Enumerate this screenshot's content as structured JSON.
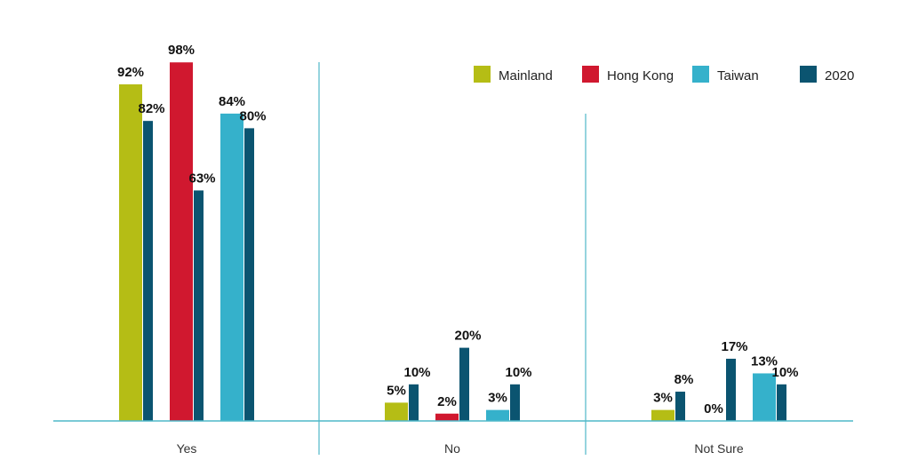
{
  "chart_data": {
    "type": "bar",
    "categories": [
      "Yes",
      "No",
      "Not Sure"
    ],
    "ylim": [
      0,
      100
    ],
    "title": "",
    "xlabel": "",
    "ylabel": "",
    "legend_position": "top-right",
    "grid": false,
    "pairs": [
      {
        "name": "Mainland",
        "color": "#b5bd15",
        "values": [
          92,
          5,
          3
        ],
        "comparison": [
          82,
          10,
          8
        ]
      },
      {
        "name": "Hong Kong",
        "color": "#d0182f",
        "values": [
          98,
          2,
          0
        ],
        "comparison": [
          63,
          20,
          17
        ]
      },
      {
        "name": "Taiwan",
        "color": "#35b1cb",
        "values": [
          84,
          3,
          13
        ],
        "comparison": [
          80,
          10,
          10
        ]
      }
    ],
    "comparison_series": {
      "name": "2020",
      "color": "#0b5470"
    },
    "value_labels": [
      [
        "92%",
        "82%",
        "98%",
        "63%",
        "84%",
        "80%"
      ],
      [
        "5%",
        "10%",
        "2%",
        "20%",
        "3%",
        "10%"
      ],
      [
        "3%",
        "8%",
        "0%",
        "17%",
        "13%",
        "10%"
      ]
    ]
  }
}
